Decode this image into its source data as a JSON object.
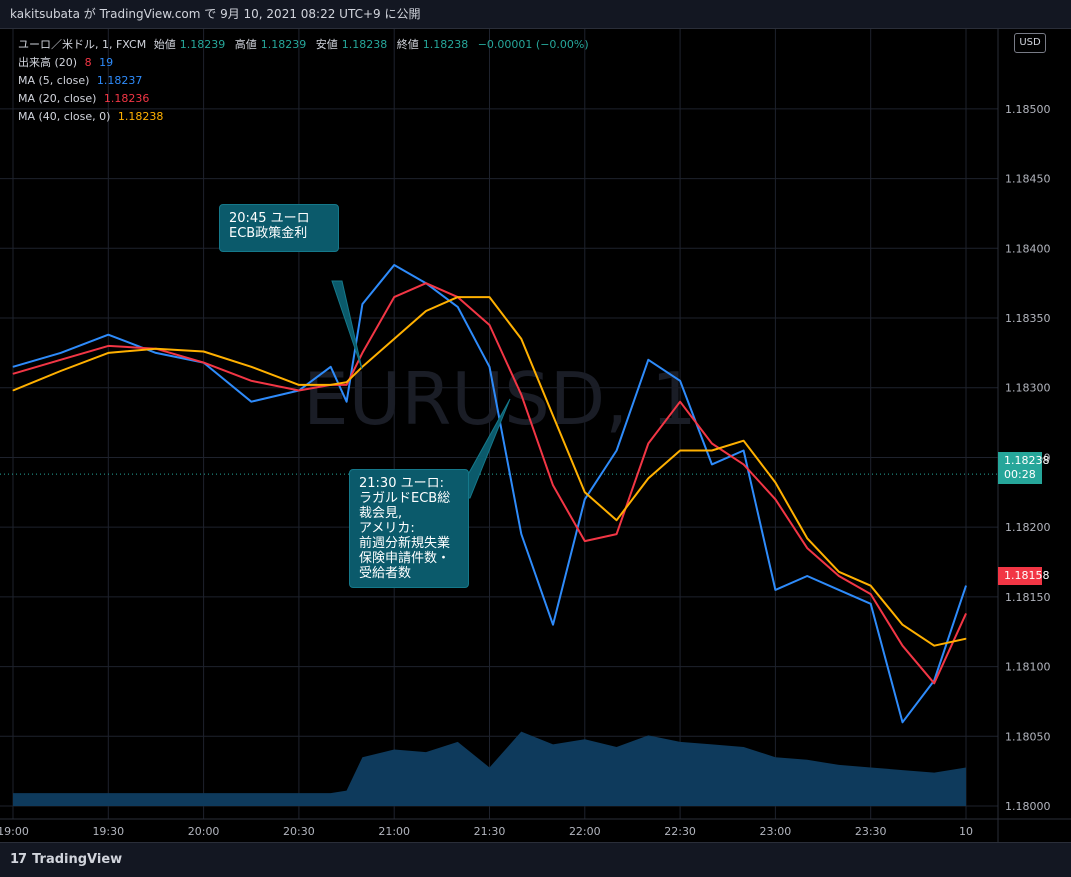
{
  "header": {
    "text": "kakitsubata が TradingView.com で 9月 10, 2021 08:22 UTC+9 に公開"
  },
  "legend": {
    "symbol": "ユーロ／米ドル, 1, FXCM",
    "ohlc": [
      {
        "label": "始値",
        "value": "1.18239"
      },
      {
        "label": "高値",
        "value": "1.18239"
      },
      {
        "label": "安値",
        "value": "1.18238"
      },
      {
        "label": "終値",
        "value": "1.18238"
      }
    ],
    "change": "−0.00001 (−0.00%)",
    "volume": {
      "label": "出来高 (20)",
      "v1": "8",
      "v2": "19"
    },
    "ma5": {
      "label": "MA (5, close)",
      "value": "1.18237"
    },
    "ma20": {
      "label": "MA (20, close)",
      "value": "1.18236"
    },
    "ma40": {
      "label": "MA (40, close, 0)",
      "value": "1.18238"
    }
  },
  "currency_button": "USD",
  "callouts": [
    {
      "text": "20:45 ユーロ\nECB政策金利"
    },
    {
      "text": "21:30 ユーロ:\nラガルドECB総\n裁会見,\nアメリカ:\n前週分新規失業\n保険申請件数・\n受給者数"
    }
  ],
  "price_tags": {
    "last": {
      "value": "1.18238",
      "countdown": "00:28"
    },
    "other": {
      "value": "1.18158"
    }
  },
  "footer": {
    "brand": "TradingView",
    "logo_glyph": "𝟭𝟳"
  },
  "watermark": "EURUSD, 1",
  "chart_data": {
    "type": "line",
    "x_tick_labels": [
      "19:00",
      "19:30",
      "20:00",
      "20:30",
      "21:00",
      "21:30",
      "22:00",
      "22:30",
      "23:00",
      "23:30",
      "10"
    ],
    "y_tick_labels": [
      "1.18500",
      "1.18450",
      "1.18400",
      "1.18350",
      "1.18300",
      "1.18250",
      "1.18200",
      "1.18150",
      "1.18100",
      "1.18050",
      "1.18000"
    ],
    "ylim": [
      1.18,
      1.1852
    ],
    "x": [
      "19:00",
      "19:15",
      "19:30",
      "19:45",
      "20:00",
      "20:15",
      "20:30",
      "20:40",
      "20:45",
      "20:50",
      "21:00",
      "21:10",
      "21:20",
      "21:30",
      "21:40",
      "21:50",
      "22:00",
      "22:10",
      "22:20",
      "22:30",
      "22:40",
      "22:50",
      "23:00",
      "23:10",
      "23:20",
      "23:30",
      "23:40",
      "23:50",
      "00:00"
    ],
    "series": [
      {
        "name": "MA (5, close)",
        "color": "#2e8bfa",
        "values": [
          1.18315,
          1.18325,
          1.18338,
          1.18325,
          1.18318,
          1.1829,
          1.18298,
          1.18315,
          1.1829,
          1.1836,
          1.18388,
          1.18375,
          1.18358,
          1.18315,
          1.18195,
          1.1813,
          1.1822,
          1.18255,
          1.1832,
          1.18305,
          1.18245,
          1.18255,
          1.18155,
          1.18165,
          1.18155,
          1.18145,
          1.1806,
          1.1809,
          1.18158
        ]
      },
      {
        "name": "MA (20, close)",
        "color": "#f23645",
        "values": [
          1.1831,
          1.1832,
          1.1833,
          1.18328,
          1.18318,
          1.18305,
          1.18298,
          1.18302,
          1.18302,
          1.18325,
          1.18365,
          1.18375,
          1.18365,
          1.18345,
          1.18295,
          1.1823,
          1.1819,
          1.18195,
          1.1826,
          1.1829,
          1.1826,
          1.18245,
          1.1822,
          1.18185,
          1.18165,
          1.18152,
          1.18115,
          1.18088,
          1.18138
        ]
      },
      {
        "name": "MA (40, close, 0)",
        "color": "#ffb000",
        "values": [
          1.18298,
          1.18312,
          1.18325,
          1.18328,
          1.18326,
          1.18315,
          1.18302,
          1.18302,
          1.18304,
          1.18315,
          1.18335,
          1.18355,
          1.18365,
          1.18365,
          1.18335,
          1.1828,
          1.18225,
          1.18205,
          1.18235,
          1.18255,
          1.18255,
          1.18262,
          1.18232,
          1.18192,
          1.18168,
          1.18158,
          1.1813,
          1.18115,
          1.1812
        ]
      }
    ],
    "volume_values": [
      10,
      10,
      10,
      10,
      10,
      10,
      10,
      10,
      12,
      38,
      44,
      42,
      50,
      30,
      58,
      48,
      52,
      46,
      55,
      50,
      48,
      46,
      38,
      36,
      32,
      30,
      28,
      26,
      30
    ],
    "last_price": 1.18238
  }
}
